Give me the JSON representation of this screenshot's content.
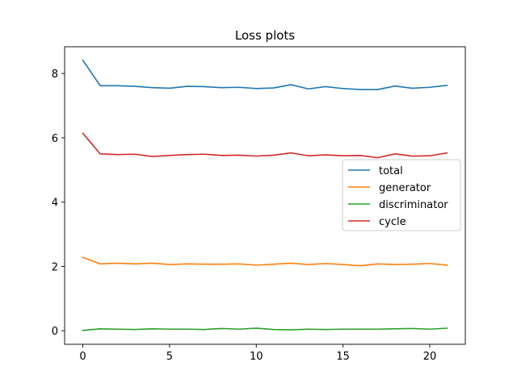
{
  "chart_data": {
    "type": "line",
    "title": "Loss plots",
    "xlabel": "",
    "ylabel": "",
    "xlim": [
      -1.05,
      22.05
    ],
    "ylim": [
      -0.42,
      8.83
    ],
    "xticks": [
      0,
      5,
      10,
      15,
      20
    ],
    "yticks": [
      0,
      2,
      4,
      6,
      8
    ],
    "grid": false,
    "legend_position": "center-right",
    "x": [
      0,
      1,
      2,
      3,
      4,
      5,
      6,
      7,
      8,
      9,
      10,
      11,
      12,
      13,
      14,
      15,
      16,
      17,
      18,
      19,
      20,
      21
    ],
    "series": [
      {
        "name": "total",
        "color": "#1f77b4",
        "values": [
          8.41,
          7.62,
          7.62,
          7.6,
          7.56,
          7.54,
          7.6,
          7.59,
          7.56,
          7.57,
          7.53,
          7.55,
          7.65,
          7.52,
          7.59,
          7.53,
          7.5,
          7.5,
          7.61,
          7.54,
          7.57,
          7.63
        ]
      },
      {
        "name": "generator",
        "color": "#ff7f0e",
        "values": [
          2.28,
          2.08,
          2.1,
          2.08,
          2.1,
          2.06,
          2.08,
          2.07,
          2.07,
          2.08,
          2.04,
          2.07,
          2.1,
          2.06,
          2.09,
          2.06,
          2.02,
          2.08,
          2.06,
          2.07,
          2.09,
          2.04
        ]
      },
      {
        "name": "discriminator",
        "color": "#2ca02c",
        "values": [
          0.01,
          0.06,
          0.05,
          0.04,
          0.06,
          0.05,
          0.05,
          0.04,
          0.07,
          0.05,
          0.08,
          0.04,
          0.03,
          0.05,
          0.04,
          0.05,
          0.05,
          0.05,
          0.06,
          0.07,
          0.05,
          0.08
        ]
      },
      {
        "name": "cycle",
        "color": "#d62728",
        "values": [
          6.14,
          5.5,
          5.48,
          5.49,
          5.42,
          5.45,
          5.48,
          5.49,
          5.45,
          5.46,
          5.43,
          5.46,
          5.53,
          5.44,
          5.47,
          5.44,
          5.45,
          5.38,
          5.5,
          5.43,
          5.44,
          5.53
        ]
      }
    ]
  }
}
